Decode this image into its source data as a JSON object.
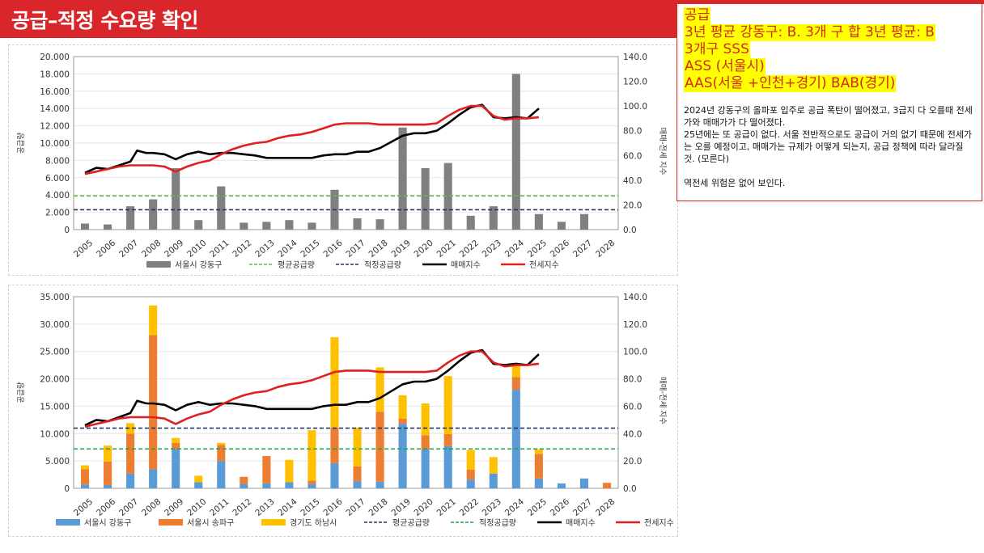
{
  "header": {
    "title": "공급–적정 수요량 확인"
  },
  "notes": {
    "highlight_lines": [
      "공급",
      "3년 평균 강동구: B. 3개 구 합 3년 평균: B",
      "3개구 SSS",
      "ASS (서울시)",
      "AAS(서울 +인천+경기) BAB(경기)"
    ],
    "body_lines": [
      "2024년 강동구의 올파포 입주로 공급 폭탄이 떨어졌고, 3급지 다 오를때 전세가와 매매가가 다 떨어졌다.",
      "25년에는 또 공급이 없다. 서울 전반적으로도 공급이 거의 없기 때문에 전세가는 오를 예정이고, 매매가는 규제가 어떻게 되는지, 공급 정책에 따라 달라질 것. (모른다)",
      "",
      "역전세 위험은 없어 보인다."
    ],
    "colors": {
      "highlight_bg": "#ffff00",
      "highlight_text": "#d22a1c",
      "border": "#d8262b"
    }
  },
  "chart_data": [
    {
      "type": "bar",
      "categories": [
        "2005",
        "2006",
        "2007",
        "2008",
        "2009",
        "2010",
        "2011",
        "2012",
        "2013",
        "2014",
        "2015",
        "2016",
        "2017",
        "2018",
        "2019",
        "2020",
        "2021",
        "2022",
        "2023",
        "2024",
        "2025",
        "2026",
        "2027",
        "2028"
      ],
      "ylabel": "공급량",
      "y2label": "매매-전세 지수",
      "ylim": [
        0,
        20000
      ],
      "yticks": [
        "0",
        "2.000",
        "4.000",
        "6.000",
        "8.000",
        "10.000",
        "12.000",
        "14.000",
        "16.000",
        "18.000",
        "20.000"
      ],
      "y2lim": [
        0,
        140
      ],
      "y2ticks": [
        "0.0",
        "20.0",
        "40.0",
        "60.0",
        "80.0",
        "100.0",
        "120.0",
        "140.0"
      ],
      "series": [
        {
          "name": "서울시 강동구",
          "color": "#808080",
          "values": [
            700,
            600,
            2700,
            3500,
            7100,
            1100,
            5000,
            800,
            900,
            1100,
            800,
            4600,
            1300,
            1200,
            11800,
            7100,
            7700,
            1600,
            2700,
            18000,
            1800,
            900,
            1800,
            0
          ]
        }
      ],
      "lines": [
        {
          "name": "평균공급량",
          "color": "#66bb44",
          "dash": "dashed",
          "axis": "left",
          "value": 3900
        },
        {
          "name": "적정공급량",
          "color": "#1f3864",
          "dash": "dashed",
          "axis": "left",
          "value": 2300
        }
      ],
      "index_series": [
        {
          "name": "매매지수",
          "color": "#000000",
          "axis": "right",
          "x": [
            2005,
            2005.5,
            2006,
            2006.5,
            2007,
            2007.3,
            2007.7,
            2008,
            2008.5,
            2009,
            2009.5,
            2010,
            2010.5,
            2011,
            2011.5,
            2012,
            2012.5,
            2013,
            2013.5,
            2014,
            2014.5,
            2015,
            2015.5,
            2016,
            2016.5,
            2017,
            2017.5,
            2018,
            2018.5,
            2019,
            2019.5,
            2020,
            2020.5,
            2021,
            2021.5,
            2022,
            2022.5,
            2023,
            2023.5,
            2024,
            2024.5,
            2025
          ],
          "y": [
            46,
            50,
            49,
            52,
            55,
            64,
            62,
            62,
            61,
            57,
            61,
            63,
            61,
            62,
            62,
            61,
            60,
            58,
            58,
            58,
            58,
            58,
            60,
            61,
            61,
            63,
            63,
            66,
            71,
            76,
            78,
            78,
            80,
            86,
            93,
            99,
            101,
            91,
            90,
            91,
            90,
            98
          ]
        },
        {
          "name": "전세지수",
          "color": "#e02020",
          "axis": "right",
          "x": [
            2005,
            2005.5,
            2006,
            2006.5,
            2007,
            2007.5,
            2008,
            2008.5,
            2009,
            2009.5,
            2010,
            2010.5,
            2011,
            2011.5,
            2012,
            2012.5,
            2013,
            2013.5,
            2014,
            2014.5,
            2015,
            2015.5,
            2016,
            2016.5,
            2017,
            2017.5,
            2018,
            2018.5,
            2019,
            2019.5,
            2020,
            2020.5,
            2021,
            2021.5,
            2022,
            2022.5,
            2023,
            2023.5,
            2024,
            2024.5,
            2025
          ],
          "y": [
            45,
            47,
            49,
            51,
            52,
            52,
            52,
            51,
            47,
            51,
            54,
            56,
            61,
            65,
            68,
            70,
            71,
            74,
            76,
            77,
            79,
            82,
            85,
            86,
            86,
            86,
            85,
            85,
            85,
            85,
            85,
            86,
            92,
            97,
            100,
            100,
            92,
            89,
            90,
            90,
            91
          ]
        }
      ],
      "legend": {
        "placement": "bottom"
      }
    },
    {
      "type": "bar",
      "categories": [
        "2005",
        "2006",
        "2007",
        "2008",
        "2009",
        "2010",
        "2011",
        "2012",
        "2013",
        "2014",
        "2015",
        "2016",
        "2017",
        "2018",
        "2019",
        "2020",
        "2021",
        "2022",
        "2023",
        "2024",
        "2025",
        "2026",
        "2027",
        "2028"
      ],
      "ylabel": "공급량",
      "y2label": "매매-전세 지수",
      "ylim": [
        0,
        35000
      ],
      "yticks": [
        "0",
        "5.000",
        "10.000",
        "15.000",
        "20.000",
        "25.000",
        "30.000",
        "35.000"
      ],
      "y2lim": [
        0,
        140
      ],
      "y2ticks": [
        "0.0",
        "20.0",
        "40.0",
        "60.0",
        "80.0",
        "100.0",
        "120.0",
        "140.0"
      ],
      "stacked": true,
      "series": [
        {
          "name": "서울시 강동구",
          "color": "#5b9bd5",
          "values": [
            700,
            600,
            2700,
            3500,
            7100,
            1100,
            5000,
            800,
            900,
            1100,
            800,
            4600,
            1300,
            1200,
            11800,
            7100,
            7700,
            1600,
            2700,
            18000,
            1800,
            900,
            1800,
            0
          ]
        },
        {
          "name": "서울시 송파구",
          "color": "#ed7d31",
          "values": [
            2800,
            4300,
            7300,
            24500,
            1200,
            0,
            2900,
            1300,
            5000,
            0,
            600,
            6500,
            2700,
            12800,
            900,
            2600,
            2200,
            1800,
            0,
            2300,
            4500,
            0,
            0,
            1000
          ]
        },
        {
          "name": "경기도 하남시",
          "color": "#ffc000",
          "values": [
            700,
            2900,
            1900,
            5400,
            900,
            1200,
            400,
            0,
            0,
            4100,
            9200,
            16500,
            7100,
            8100,
            4300,
            5800,
            10600,
            3600,
            3000,
            2000,
            800,
            0,
            0,
            0
          ]
        }
      ],
      "lines": [
        {
          "name": "평균공급량",
          "color": "#1f3864",
          "dash": "dashed",
          "axis": "left",
          "value": 11000
        },
        {
          "name": "적정공급량",
          "color": "#22a04b",
          "dash": "dashed",
          "axis": "left",
          "value": 7200
        }
      ],
      "index_series": [
        {
          "name": "매매지수",
          "color": "#000000",
          "axis": "right",
          "x": [
            2005,
            2005.5,
            2006,
            2006.5,
            2007,
            2007.3,
            2007.7,
            2008,
            2008.5,
            2009,
            2009.5,
            2010,
            2010.5,
            2011,
            2011.5,
            2012,
            2012.5,
            2013,
            2013.5,
            2014,
            2014.5,
            2015,
            2015.5,
            2016,
            2016.5,
            2017,
            2017.5,
            2018,
            2018.5,
            2019,
            2019.5,
            2020,
            2020.5,
            2021,
            2021.5,
            2022,
            2022.5,
            2023,
            2023.5,
            2024,
            2024.5,
            2025
          ],
          "y": [
            46,
            50,
            49,
            52,
            55,
            64,
            62,
            62,
            61,
            57,
            61,
            63,
            61,
            62,
            62,
            61,
            60,
            58,
            58,
            58,
            58,
            58,
            60,
            61,
            61,
            63,
            63,
            66,
            71,
            76,
            78,
            78,
            80,
            86,
            93,
            99,
            101,
            91,
            90,
            91,
            90,
            98
          ]
        },
        {
          "name": "전세지수",
          "color": "#e02020",
          "axis": "right",
          "x": [
            2005,
            2005.5,
            2006,
            2006.5,
            2007,
            2007.5,
            2008,
            2008.5,
            2009,
            2009.5,
            2010,
            2010.5,
            2011,
            2011.5,
            2012,
            2012.5,
            2013,
            2013.5,
            2014,
            2014.5,
            2015,
            2015.5,
            2016,
            2016.5,
            2017,
            2017.5,
            2018,
            2018.5,
            2019,
            2019.5,
            2020,
            2020.5,
            2021,
            2021.5,
            2022,
            2022.5,
            2023,
            2023.5,
            2024,
            2024.5,
            2025
          ],
          "y": [
            45,
            47,
            49,
            51,
            52,
            52,
            52,
            51,
            47,
            51,
            54,
            56,
            61,
            65,
            68,
            70,
            71,
            74,
            76,
            77,
            79,
            82,
            85,
            86,
            86,
            86,
            85,
            85,
            85,
            85,
            85,
            86,
            92,
            97,
            100,
            100,
            92,
            89,
            90,
            90,
            91
          ]
        }
      ],
      "legend": {
        "placement": "bottom"
      }
    }
  ]
}
